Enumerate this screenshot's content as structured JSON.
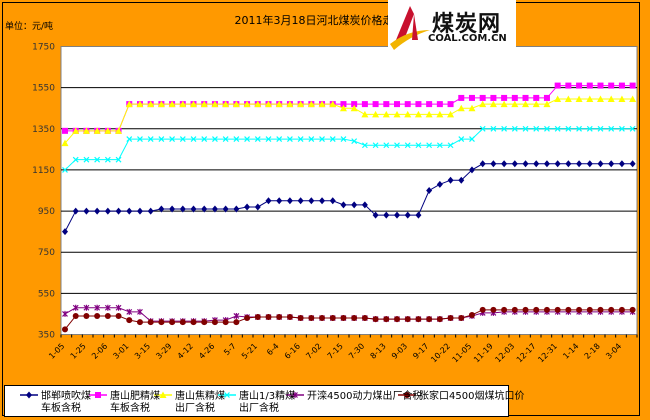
{
  "chart_data": {
    "type": "line",
    "title": "2011年3月18日河北煤炭价格走势图",
    "ylabel": "单位：元/吨",
    "xlabel": "",
    "ylim": [
      350,
      1750
    ],
    "yticks": [
      350,
      550,
      750,
      950,
      1150,
      1350,
      1550,
      1750
    ],
    "grid": true,
    "legend_position": "bottom",
    "x_tick_labels": [
      "1-05",
      "1-25",
      "2-06",
      "3-01",
      "3-15",
      "3-29",
      "4-12",
      "4-26",
      "5-7",
      "5-21",
      "6-4",
      "6-16",
      "7-02",
      "7-15",
      "7-30",
      "8-13",
      "9-03",
      "9-17",
      "10-22",
      "11-05",
      "11-19",
      "12-03",
      "12-17",
      "12-31",
      "1-14",
      "2-18",
      "3-04"
    ],
    "point_count": 54,
    "series": [
      {
        "name": "邯郸喷吹煤车板含税",
        "name_lines": [
          "邯郸喷吹煤",
          "车板含税"
        ],
        "color": "#000080",
        "marker": "diamond",
        "values": [
          850,
          950,
          950,
          950,
          950,
          950,
          950,
          950,
          950,
          960,
          960,
          960,
          960,
          960,
          960,
          960,
          960,
          970,
          970,
          1000,
          1000,
          1000,
          1000,
          1000,
          1000,
          1000,
          980,
          980,
          980,
          930,
          930,
          930,
          930,
          930,
          1050,
          1080,
          1100,
          1100,
          1150,
          1180,
          1180,
          1180,
          1180,
          1180,
          1180,
          1180,
          1180,
          1180,
          1180,
          1180,
          1180,
          1180,
          1180,
          1180
        ]
      },
      {
        "name": "唐山肥精煤车板含税",
        "name_lines": [
          "唐山肥精煤",
          "车板含税"
        ],
        "color": "#FF00FF",
        "marker": "square",
        "values": [
          1340,
          1340,
          1340,
          1340,
          1340,
          1340,
          1470,
          1470,
          1470,
          1470,
          1470,
          1470,
          1470,
          1470,
          1470,
          1470,
          1470,
          1470,
          1470,
          1470,
          1470,
          1470,
          1470,
          1470,
          1470,
          1470,
          1470,
          1470,
          1470,
          1470,
          1470,
          1470,
          1470,
          1470,
          1470,
          1470,
          1470,
          1500,
          1500,
          1500,
          1500,
          1500,
          1500,
          1500,
          1500,
          1500,
          1560,
          1560,
          1560,
          1560,
          1560,
          1560,
          1560,
          1560
        ]
      },
      {
        "name": "唐山焦精煤出厂含税",
        "name_lines": [
          "唐山焦精煤",
          "出厂含税"
        ],
        "color": "#FFFF00",
        "marker": "triangle",
        "values": [
          1280,
          1340,
          1340,
          1340,
          1340,
          1340,
          1470,
          1470,
          1470,
          1470,
          1470,
          1470,
          1470,
          1470,
          1470,
          1470,
          1470,
          1470,
          1470,
          1470,
          1470,
          1470,
          1470,
          1470,
          1470,
          1470,
          1450,
          1450,
          1420,
          1420,
          1420,
          1420,
          1420,
          1420,
          1420,
          1420,
          1420,
          1450,
          1450,
          1470,
          1470,
          1470,
          1470,
          1470,
          1470,
          1470,
          1495,
          1495,
          1495,
          1495,
          1495,
          1495,
          1495,
          1495
        ]
      },
      {
        "name": "唐山1/3精煤出厂含税",
        "name_lines": [
          "唐山1/3精煤",
          "出厂含税"
        ],
        "color": "#00FFFF",
        "marker": "x",
        "values": [
          1150,
          1200,
          1200,
          1200,
          1200,
          1200,
          1300,
          1300,
          1300,
          1300,
          1300,
          1300,
          1300,
          1300,
          1300,
          1300,
          1300,
          1300,
          1300,
          1300,
          1300,
          1300,
          1300,
          1300,
          1300,
          1300,
          1300,
          1290,
          1270,
          1270,
          1270,
          1270,
          1270,
          1270,
          1270,
          1270,
          1270,
          1300,
          1300,
          1350,
          1350,
          1350,
          1350,
          1350,
          1350,
          1350,
          1350,
          1350,
          1350,
          1350,
          1350,
          1350,
          1350,
          1350
        ]
      },
      {
        "name": "开滦4500动力煤出厂含税",
        "name_lines": [
          "开滦4500动力煤出厂含税"
        ],
        "color": "#800080",
        "marker": "star",
        "values": [
          450,
          480,
          480,
          480,
          480,
          480,
          460,
          460,
          415,
          415,
          415,
          415,
          415,
          415,
          420,
          420,
          440,
          435,
          435,
          435,
          435,
          435,
          430,
          430,
          430,
          430,
          430,
          430,
          430,
          425,
          425,
          425,
          425,
          425,
          425,
          425,
          430,
          430,
          440,
          455,
          455,
          460,
          460,
          460,
          460,
          460,
          460,
          460,
          460,
          460,
          460,
          460,
          460,
          460
        ]
      },
      {
        "name": "张家口4500烟煤坑口价",
        "name_lines": [
          "张家口4500烟煤坑口价"
        ],
        "color": "#800000",
        "marker": "circle",
        "values": [
          375,
          440,
          440,
          440,
          440,
          440,
          420,
          410,
          410,
          410,
          410,
          410,
          410,
          410,
          410,
          410,
          410,
          430,
          435,
          435,
          435,
          435,
          430,
          430,
          430,
          430,
          430,
          430,
          430,
          425,
          425,
          425,
          425,
          425,
          425,
          425,
          430,
          430,
          445,
          470,
          470,
          470,
          470,
          470,
          470,
          470,
          470,
          470,
          470,
          470,
          470,
          470,
          470,
          470
        ]
      }
    ]
  },
  "logo": {
    "cn": "煤炭网",
    "en": "COAL.COM.CN"
  },
  "colors": {
    "background": "#FF9900",
    "plot": "#FFFFFF",
    "grid": "#000000"
  }
}
